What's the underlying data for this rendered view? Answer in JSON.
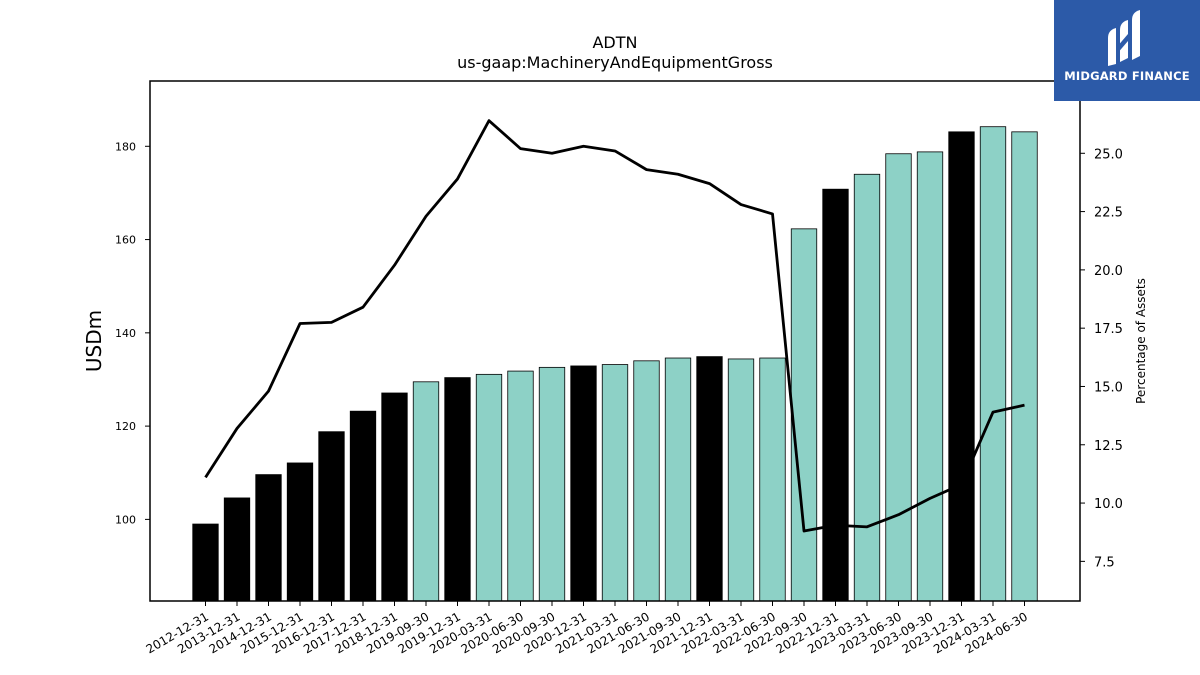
{
  "chart_data": {
    "type": "bar",
    "title": "ADTN",
    "subtitle": "us-gaap:MachineryAndEquipmentGross",
    "ylabel": "USDm",
    "y2label": "Percentage of Assets",
    "ylim": [
      82.5,
      194
    ],
    "y2lim": [
      5.8,
      28.1
    ],
    "yticks": [
      100,
      120,
      140,
      160,
      180
    ],
    "y2ticks": [
      7.5,
      10.0,
      12.5,
      15.0,
      17.5,
      20.0,
      22.5,
      25.0
    ],
    "categories": [
      "2012-12-31",
      "2013-12-31",
      "2014-12-31",
      "2015-12-31",
      "2016-12-31",
      "2017-12-31",
      "2018-12-31",
      "2019-09-30",
      "2019-12-31",
      "2020-03-31",
      "2020-06-30",
      "2020-09-30",
      "2020-12-31",
      "2021-03-31",
      "2021-06-30",
      "2021-09-30",
      "2021-12-31",
      "2022-03-31",
      "2022-06-30",
      "2022-09-30",
      "2022-12-31",
      "2023-03-31",
      "2023-06-30",
      "2023-09-30",
      "2023-12-31",
      "2024-03-31",
      "2024-06-30"
    ],
    "series": [
      {
        "type": "bar",
        "values": [
          99.0,
          104.6,
          109.6,
          112.1,
          118.8,
          123.2,
          127.1,
          129.5,
          130.4,
          131.1,
          131.8,
          132.6,
          132.9,
          133.2,
          134.0,
          134.6,
          134.9,
          134.4,
          134.6,
          162.3,
          170.8,
          174.0,
          178.4,
          178.8,
          183.1,
          184.2,
          183.1
        ],
        "kinds": [
          "annual",
          "annual",
          "annual",
          "annual",
          "annual",
          "annual",
          "annual",
          "quarterly",
          "annual",
          "quarterly",
          "quarterly",
          "quarterly",
          "annual",
          "quarterly",
          "quarterly",
          "quarterly",
          "annual",
          "quarterly",
          "quarterly",
          "quarterly",
          "annual",
          "quarterly",
          "quarterly",
          "quarterly",
          "annual",
          "quarterly",
          "quarterly"
        ]
      },
      {
        "type": "line",
        "axis": "right",
        "values": [
          11.1,
          13.2,
          14.8,
          17.7,
          17.75,
          18.4,
          20.2,
          22.3,
          23.9,
          26.4,
          25.2,
          25.0,
          25.3,
          25.1,
          24.3,
          24.1,
          23.7,
          22.8,
          22.4,
          8.8,
          9.05,
          8.98,
          9.5,
          10.2,
          10.8,
          13.9,
          14.2
        ]
      }
    ],
    "colors": {
      "annual": "#000000",
      "quarterly": "#8dd1c6",
      "line": "#000000"
    }
  },
  "logo": {
    "text": "MIDGARD FINANCE",
    "bg": "#2c5aa8"
  }
}
